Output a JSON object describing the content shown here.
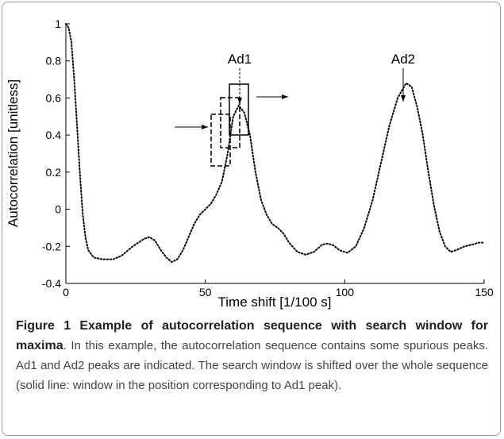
{
  "chart_data": {
    "type": "line",
    "x": [
      0,
      1,
      2,
      3,
      4,
      5,
      6,
      7,
      8,
      10,
      13,
      17,
      20,
      24,
      28,
      30,
      32,
      34,
      36,
      38,
      40,
      42,
      44,
      46,
      48,
      50,
      52,
      54,
      56,
      58,
      60,
      62,
      64,
      66,
      68,
      70,
      72,
      74,
      76,
      78,
      80,
      83,
      86,
      89,
      92,
      94,
      96,
      98,
      101,
      104,
      107,
      110,
      113,
      116,
      119,
      122,
      124,
      126,
      128,
      130,
      132,
      134,
      136,
      138,
      140,
      143,
      146,
      148,
      150
    ],
    "values": [
      1,
      0.98,
      0.9,
      0.7,
      0.45,
      0.2,
      -0.02,
      -0.15,
      -0.22,
      -0.26,
      -0.27,
      -0.27,
      -0.25,
      -0.2,
      -0.16,
      -0.15,
      -0.17,
      -0.22,
      -0.26,
      -0.285,
      -0.27,
      -0.22,
      -0.15,
      -0.08,
      -0.03,
      0,
      0.03,
      0.08,
      0.15,
      0.3,
      0.5,
      0.56,
      0.52,
      0.4,
      0.2,
      0.05,
      -0.03,
      -0.08,
      -0.1,
      -0.13,
      -0.18,
      -0.23,
      -0.245,
      -0.23,
      -0.19,
      -0.185,
      -0.195,
      -0.22,
      -0.235,
      -0.2,
      -0.1,
      0.05,
      0.25,
      0.45,
      0.6,
      0.68,
      0.66,
      0.55,
      0.4,
      0.2,
      0.02,
      -0.12,
      -0.2,
      -0.23,
      -0.22,
      -0.2,
      -0.19,
      -0.18,
      -0.18
    ],
    "xlabel": "Time shift [1/100 s]",
    "ylabel": "Autocorrelation [unitless]",
    "xlim": [
      0,
      150
    ],
    "xticks": [
      0,
      50,
      100,
      150
    ],
    "ylim": [
      -0.4,
      1
    ],
    "yticks": [
      -0.4,
      -0.2,
      0,
      0.2,
      0.4,
      0.6,
      0.8,
      1
    ],
    "color": "#000000",
    "annotations": [
      "Ad1",
      "Ad2"
    ]
  },
  "caption": {
    "label": "Figure 1",
    "title": "Example of autocorrelation sequence with search window for maxima",
    "text": ". In this example, the autocorrelation sequence contains some spurious peaks. Ad1 and Ad2 peaks are indicated. The search window is shifted over the whole sequence (solid line: window in the position corresponding to Ad1 peak)."
  }
}
